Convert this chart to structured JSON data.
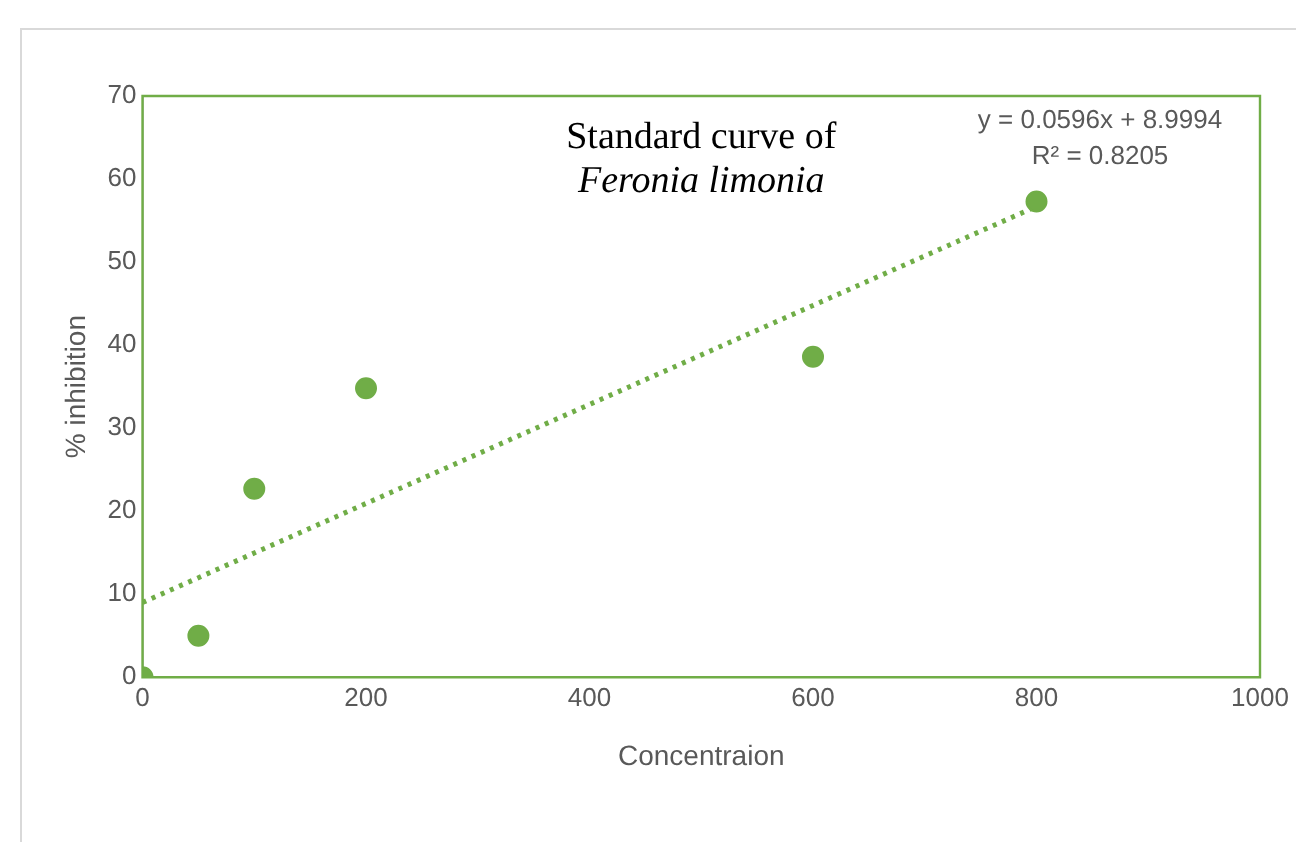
{
  "chart_data": {
    "type": "scatter",
    "title": "Standard curve of",
    "subtitle": "Feronia limonia",
    "xlabel": "Concentraion",
    "ylabel": "% inhibition",
    "annotations": [
      "y = 0.0596x + 8.9994",
      "R² = 0.8205"
    ],
    "xlim": [
      0,
      1000
    ],
    "xticks": [
      0,
      200,
      400,
      600,
      800,
      1000
    ],
    "ylim": [
      0,
      70
    ],
    "yticks": [
      0,
      10,
      20,
      30,
      40,
      50,
      60,
      70
    ],
    "grid": false,
    "legend": false,
    "series": [
      {
        "type": "scatter",
        "color": "#70ad47",
        "marker": "circle",
        "x": [
          0,
          50,
          100,
          200,
          600,
          800
        ],
        "values": [
          0,
          5,
          22.7,
          34.8,
          38.6,
          57.3
        ]
      },
      {
        "type": "line",
        "color": "#70ad47",
        "marker": "none",
        "line_style": "dotted",
        "x": [
          0,
          800
        ],
        "values": [
          9,
          56.7
        ]
      }
    ]
  }
}
